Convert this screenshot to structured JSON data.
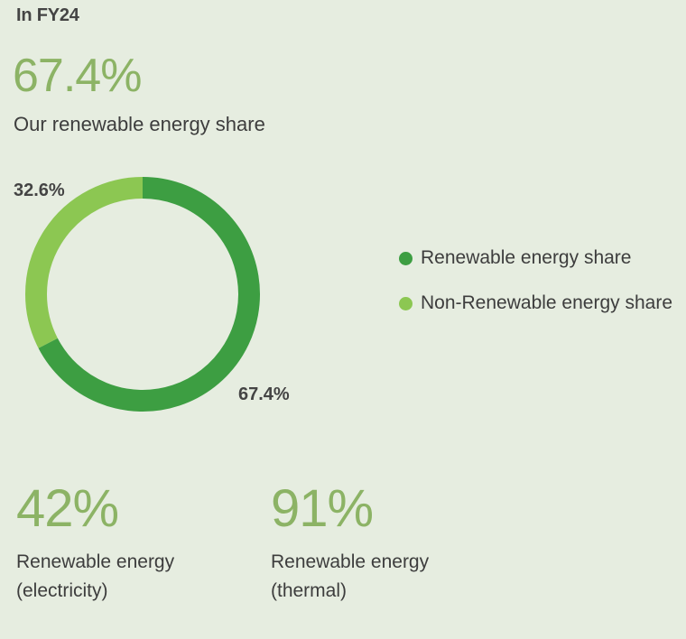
{
  "period": "In FY24",
  "headline": {
    "value": "67.4%",
    "label": "Our renewable energy share"
  },
  "colors": {
    "renewable": "#3d9e42",
    "non_renewable": "#8cc752",
    "headline_green": "#8cb365"
  },
  "chart_data": {
    "type": "pie",
    "variant": "donut",
    "slices": [
      {
        "label": "Renewable energy share",
        "value": 67.4,
        "display": "67.4%",
        "color": "#3d9e42"
      },
      {
        "label": "Non-Renewable energy share",
        "value": 32.6,
        "display": "32.6%",
        "color": "#8cc752"
      }
    ],
    "legend_position": "right"
  },
  "stats": [
    {
      "value": "42%",
      "label_line1": "Renewable energy",
      "label_line2": "(electricity)"
    },
    {
      "value": "91%",
      "label_line1": "Renewable energy",
      "label_line2": "(thermal)"
    }
  ]
}
